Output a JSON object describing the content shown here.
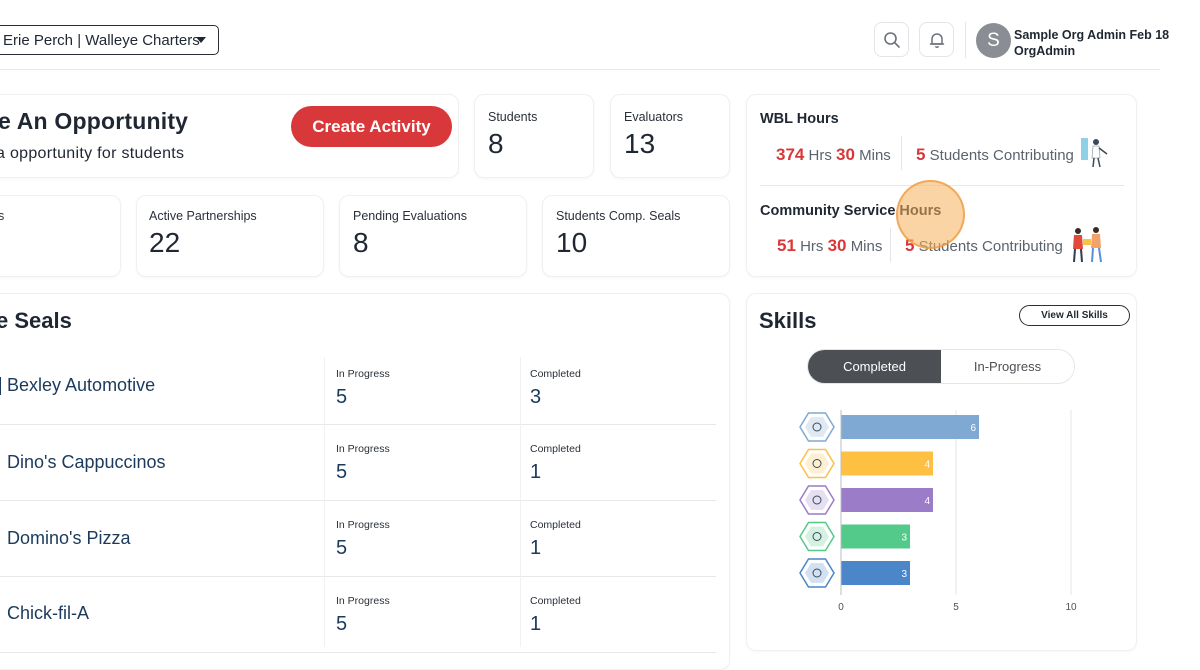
{
  "header": {
    "org_selector": "Erie Perch | Walleye Charters",
    "user_name": "Sample Org Admin Feb 18",
    "user_role": "OrgAdmin",
    "avatar_initial": "S"
  },
  "opportunity": {
    "title": "e An Opportunity",
    "subtitle": "a opportunity for students",
    "create_button": "Create Activity"
  },
  "stats_top": [
    {
      "label": "Students",
      "value": "8"
    },
    {
      "label": "Evaluators",
      "value": "13"
    }
  ],
  "stats_row2": [
    {
      "label": "s",
      "value": ""
    },
    {
      "label": "Active Partnerships",
      "value": "22"
    },
    {
      "label": "Pending Evaluations",
      "value": "8"
    },
    {
      "label": "Students Comp. Seals",
      "value": "10"
    }
  ],
  "wbl": {
    "title": "WBL Hours",
    "hours": "374",
    "hrs_unit": "Hrs",
    "mins": "30",
    "mins_unit": "Mins",
    "students": "5",
    "contrib_text": "Students Contributing"
  },
  "community": {
    "title": "Community Service Hours",
    "hours": "51",
    "hrs_unit": "Hrs",
    "mins": "30",
    "mins_unit": "Mins",
    "students": "5",
    "contrib_text": "Students Contributing"
  },
  "seals": {
    "title": "e Seals",
    "in_progress_label": "In Progress",
    "completed_label": "Completed",
    "rows": [
      {
        "name": "Bexley Automotive",
        "in_progress": "5",
        "completed": "3"
      },
      {
        "name": "Dino's Cappuccinos",
        "in_progress": "5",
        "completed": "1"
      },
      {
        "name": "Domino's Pizza",
        "in_progress": "5",
        "completed": "1"
      },
      {
        "name": "Chick-fil-A",
        "in_progress": "5",
        "completed": "1"
      }
    ]
  },
  "skills": {
    "title": "Skills",
    "view_all": "View All Skills",
    "tabs": [
      {
        "label": "Completed",
        "active": true
      },
      {
        "label": "In-Progress",
        "active": false
      }
    ]
  },
  "chart_data": {
    "type": "bar",
    "orientation": "horizontal",
    "categories": [
      "skill-1",
      "skill-2",
      "skill-3",
      "skill-4",
      "skill-5"
    ],
    "icon_names": [
      "presentation-icon",
      "checklist-icon",
      "clock-icon",
      "network-icon",
      "scales-icon"
    ],
    "values": [
      6,
      4,
      4,
      3,
      3
    ],
    "colors": [
      "#7fa9d3",
      "#fdc043",
      "#9a7cc9",
      "#53c98a",
      "#4a86c8"
    ],
    "xlim": [
      0,
      10
    ],
    "xticks": [
      "0",
      "5",
      "10"
    ],
    "grid": true
  }
}
